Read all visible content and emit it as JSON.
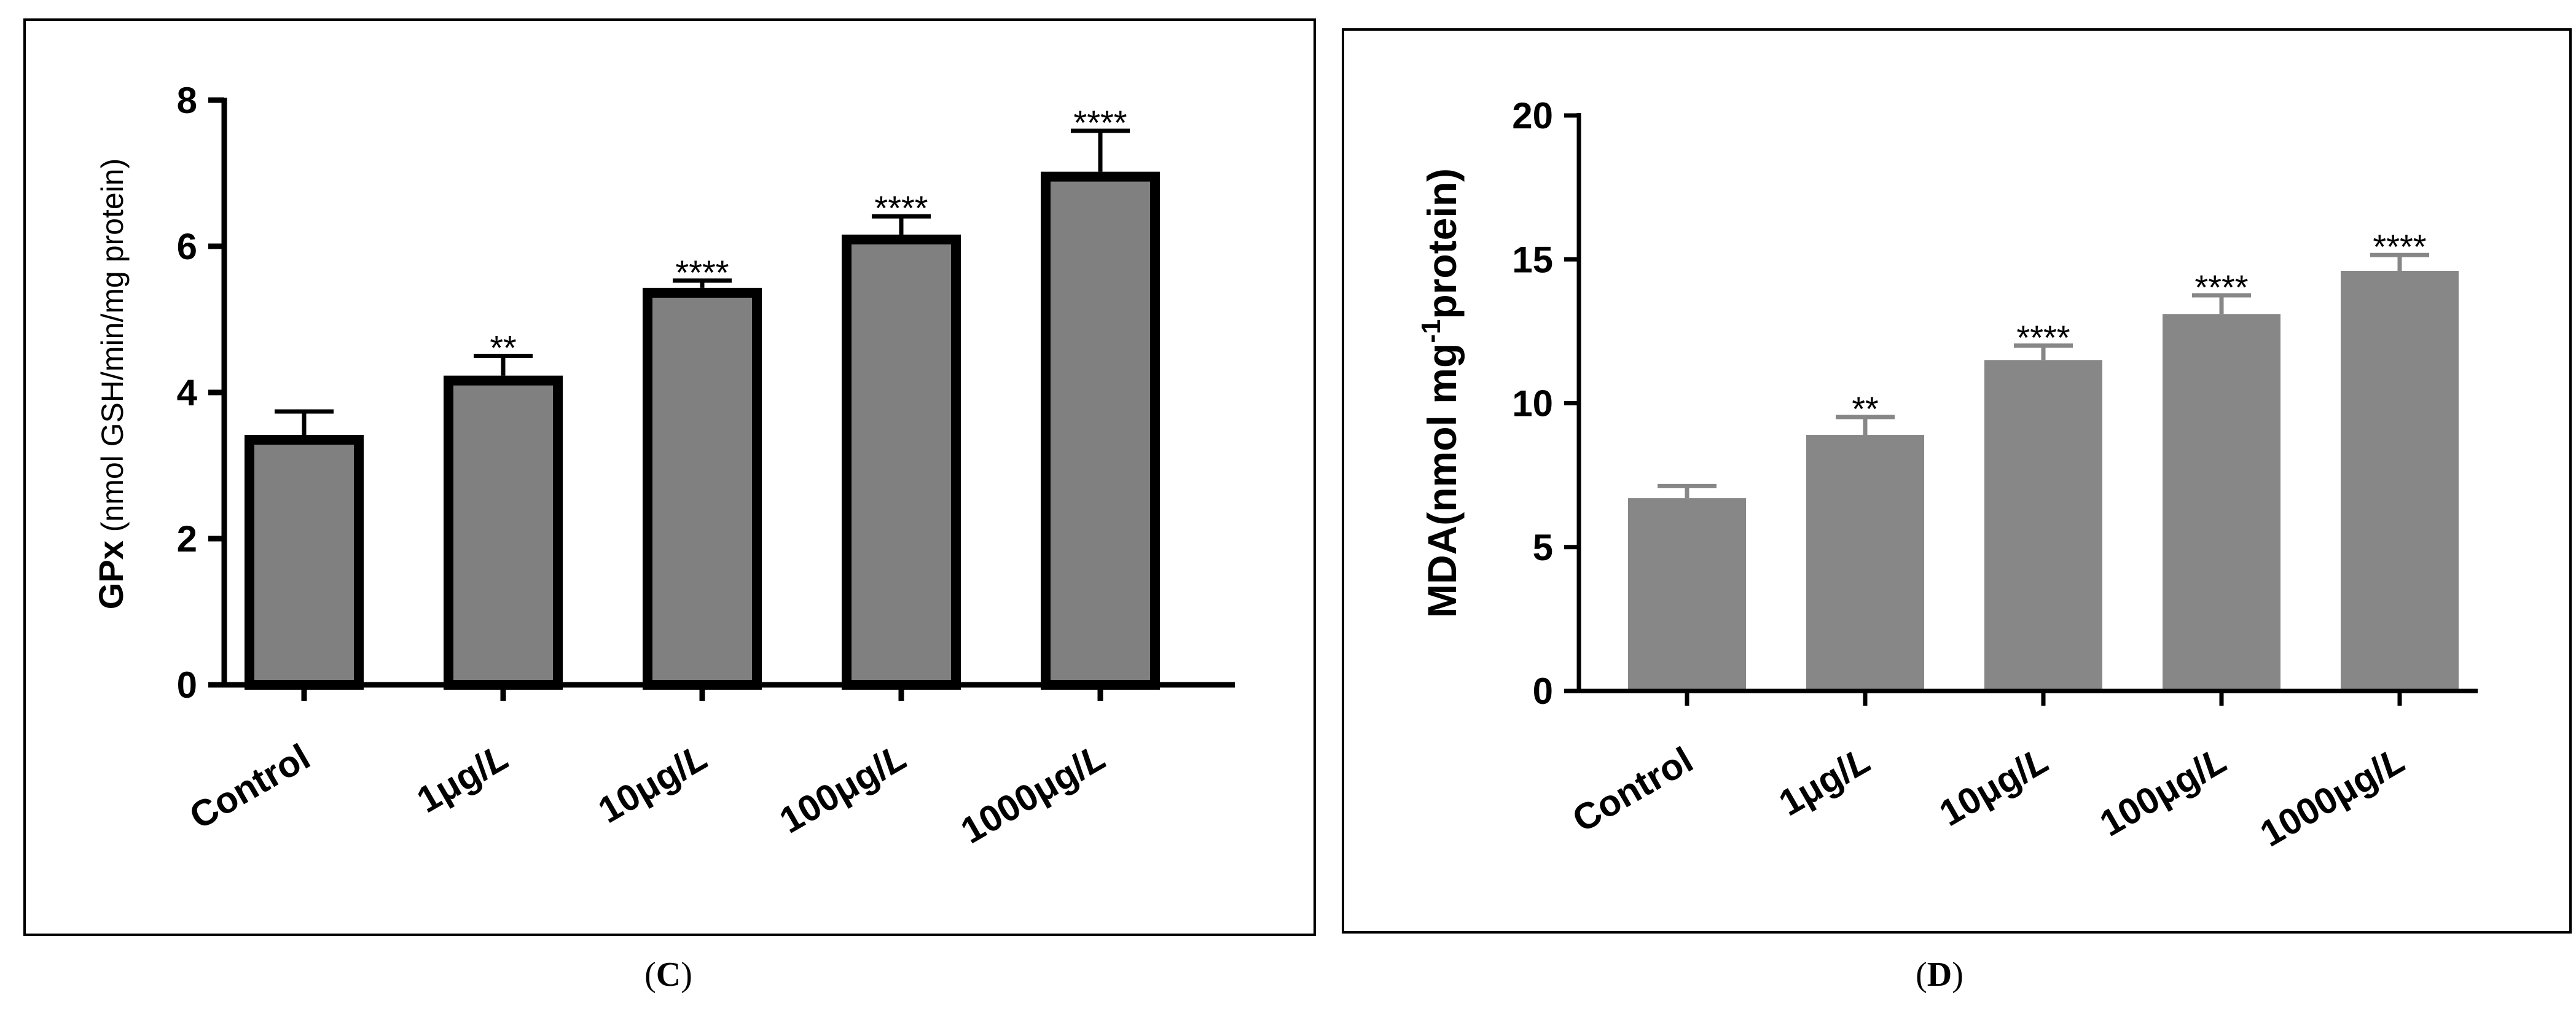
{
  "chart_data": [
    {
      "type": "bar",
      "panel": "C",
      "ylabel_prefix": "GPx",
      "ylabel_rest": " (nmol GSH/min/mg protein)",
      "categories": [
        "Control",
        "1μg/",
        "10μg/",
        "100μg/",
        "1000μg/"
      ],
      "category_suffix": "L",
      "values": [
        3.42,
        4.23,
        5.43,
        6.16,
        7.02
      ],
      "errors": [
        0.32,
        0.27,
        0.1,
        0.25,
        0.56
      ],
      "significance": [
        "",
        "**",
        "****",
        "****",
        "****"
      ],
      "ylim": [
        0,
        8
      ],
      "yticks": [
        0,
        2,
        4,
        6,
        8
      ],
      "bar_color": "#808080",
      "bar_edge_color": "#000000"
    },
    {
      "type": "bar",
      "panel": "D",
      "ylabel_main": "MDA(nmol mg",
      "ylabel_sup": "-1",
      "ylabel_end": "protein)",
      "categories": [
        "Control",
        "1μg/",
        "10μg/",
        "100μg/",
        "1000μg/"
      ],
      "category_suffix": "L",
      "values": [
        6.7,
        8.9,
        11.5,
        13.1,
        14.6
      ],
      "errors": [
        0.42,
        0.62,
        0.5,
        0.65,
        0.55
      ],
      "significance": [
        "",
        "**",
        "****",
        "****",
        "****"
      ],
      "ylim": [
        0,
        20
      ],
      "yticks": [
        0,
        5,
        10,
        15,
        20
      ],
      "bar_color": "#878787",
      "bar_edge_color": "#878787"
    }
  ],
  "captions": {
    "left_open": "(",
    "left_letter": "C",
    "left_close": ")",
    "right_open": "(",
    "right_letter": "D",
    "right_close": ")"
  }
}
